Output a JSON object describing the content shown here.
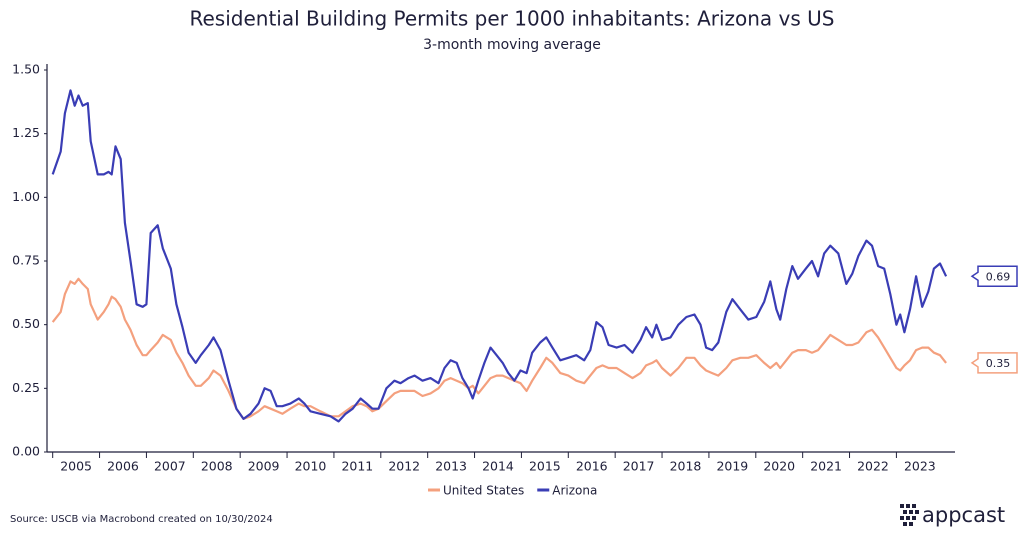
{
  "chart_data": {
    "type": "line",
    "title": "Residential Building Permits per 1000 inhabitants: Arizona vs US",
    "subtitle": "3-month moving average",
    "source": "Source: USCB via Macrobond created on 10/30/2024",
    "logo": "appcast",
    "x": [
      2005.0,
      2005.17,
      2005.26,
      2005.38,
      2005.47,
      2005.55,
      2005.64,
      2005.75,
      2005.81,
      2005.96,
      2006.09,
      2006.19,
      2006.26,
      2006.34,
      2006.45,
      2006.54,
      2006.66,
      2006.79,
      2006.92,
      2007.0,
      2007.09,
      2007.24,
      2007.35,
      2007.52,
      2007.64,
      2007.77,
      2007.9,
      2008.05,
      2008.16,
      2008.33,
      2008.43,
      2008.58,
      2008.75,
      2008.92,
      2009.07,
      2009.22,
      2009.39,
      2009.52,
      2009.65,
      2009.78,
      2009.9,
      2010.07,
      2010.25,
      2010.37,
      2010.5,
      2010.71,
      2010.93,
      2011.1,
      2011.25,
      2011.4,
      2011.57,
      2011.7,
      2011.82,
      2011.95,
      2012.12,
      2012.29,
      2012.42,
      2012.59,
      2012.72,
      2012.89,
      2013.06,
      2013.23,
      2013.36,
      2013.49,
      2013.62,
      2013.74,
      2013.87,
      2013.96,
      2014.08,
      2014.21,
      2014.34,
      2014.47,
      2014.6,
      2014.72,
      2014.85,
      2014.98,
      2015.11,
      2015.23,
      2015.4,
      2015.53,
      2015.66,
      2015.83,
      2016.0,
      2016.17,
      2016.34,
      2016.47,
      2016.6,
      2016.73,
      2016.86,
      2017.03,
      2017.2,
      2017.37,
      2017.54,
      2017.66,
      2017.79,
      2017.88,
      2018.0,
      2018.18,
      2018.35,
      2018.52,
      2018.69,
      2018.82,
      2018.94,
      2019.07,
      2019.2,
      2019.37,
      2019.5,
      2019.67,
      2019.84,
      2020.01,
      2020.18,
      2020.31,
      2020.44,
      2020.52,
      2020.65,
      2020.78,
      2020.9,
      2021.07,
      2021.2,
      2021.33,
      2021.46,
      2021.59,
      2021.76,
      2021.93,
      2022.06,
      2022.19,
      2022.36,
      2022.48,
      2022.61,
      2022.74,
      2022.87,
      2023.0,
      2023.08,
      2023.17,
      2023.29,
      2023.42,
      2023.55,
      2023.68,
      2023.8,
      2023.93,
      2024.06
    ],
    "series": [
      {
        "name": "United States",
        "color": "#f4a07e",
        "values": [
          0.51,
          0.55,
          0.62,
          0.67,
          0.66,
          0.68,
          0.66,
          0.64,
          0.58,
          0.52,
          0.55,
          0.58,
          0.61,
          0.6,
          0.57,
          0.52,
          0.48,
          0.42,
          0.38,
          0.38,
          0.4,
          0.43,
          0.46,
          0.44,
          0.39,
          0.35,
          0.3,
          0.26,
          0.26,
          0.29,
          0.32,
          0.3,
          0.24,
          0.17,
          0.13,
          0.14,
          0.16,
          0.18,
          0.17,
          0.16,
          0.15,
          0.17,
          0.19,
          0.18,
          0.18,
          0.16,
          0.14,
          0.14,
          0.16,
          0.18,
          0.19,
          0.18,
          0.16,
          0.17,
          0.2,
          0.23,
          0.24,
          0.24,
          0.24,
          0.22,
          0.23,
          0.25,
          0.28,
          0.29,
          0.28,
          0.27,
          0.25,
          0.26,
          0.23,
          0.26,
          0.29,
          0.3,
          0.3,
          0.29,
          0.28,
          0.27,
          0.24,
          0.28,
          0.33,
          0.37,
          0.35,
          0.31,
          0.3,
          0.28,
          0.27,
          0.3,
          0.33,
          0.34,
          0.33,
          0.33,
          0.31,
          0.29,
          0.31,
          0.34,
          0.35,
          0.36,
          0.33,
          0.3,
          0.33,
          0.37,
          0.37,
          0.34,
          0.32,
          0.31,
          0.3,
          0.33,
          0.36,
          0.37,
          0.37,
          0.38,
          0.35,
          0.33,
          0.35,
          0.33,
          0.36,
          0.39,
          0.4,
          0.4,
          0.39,
          0.4,
          0.43,
          0.46,
          0.44,
          0.42,
          0.42,
          0.43,
          0.47,
          0.48,
          0.45,
          0.41,
          0.37,
          0.33,
          0.32,
          0.34,
          0.36,
          0.4,
          0.41,
          0.41,
          0.39,
          0.38,
          0.35
        ]
      },
      {
        "name": "Arizona",
        "color": "#3a3db5",
        "values": [
          1.09,
          1.18,
          1.33,
          1.42,
          1.36,
          1.4,
          1.36,
          1.37,
          1.22,
          1.09,
          1.09,
          1.1,
          1.09,
          1.2,
          1.15,
          0.9,
          0.75,
          0.58,
          0.57,
          0.58,
          0.86,
          0.89,
          0.8,
          0.72,
          0.58,
          0.49,
          0.39,
          0.35,
          0.38,
          0.42,
          0.45,
          0.4,
          0.28,
          0.17,
          0.13,
          0.15,
          0.19,
          0.25,
          0.24,
          0.18,
          0.18,
          0.19,
          0.21,
          0.19,
          0.16,
          0.15,
          0.14,
          0.12,
          0.15,
          0.17,
          0.21,
          0.19,
          0.17,
          0.17,
          0.25,
          0.28,
          0.27,
          0.29,
          0.3,
          0.28,
          0.29,
          0.27,
          0.33,
          0.36,
          0.35,
          0.29,
          0.25,
          0.21,
          0.28,
          0.35,
          0.41,
          0.38,
          0.35,
          0.31,
          0.28,
          0.32,
          0.31,
          0.39,
          0.43,
          0.45,
          0.41,
          0.36,
          0.37,
          0.38,
          0.36,
          0.4,
          0.51,
          0.49,
          0.42,
          0.41,
          0.42,
          0.39,
          0.44,
          0.49,
          0.45,
          0.5,
          0.44,
          0.45,
          0.5,
          0.53,
          0.54,
          0.5,
          0.41,
          0.4,
          0.43,
          0.55,
          0.6,
          0.56,
          0.52,
          0.53,
          0.59,
          0.67,
          0.56,
          0.52,
          0.64,
          0.73,
          0.68,
          0.72,
          0.75,
          0.69,
          0.78,
          0.81,
          0.78,
          0.66,
          0.7,
          0.77,
          0.83,
          0.81,
          0.73,
          0.72,
          0.62,
          0.5,
          0.54,
          0.47,
          0.56,
          0.69,
          0.57,
          0.63,
          0.72,
          0.74,
          0.69
        ]
      }
    ],
    "xlim": [
      2004.9,
      2024.25
    ],
    "xticks": [
      2005,
      2006,
      2007,
      2008,
      2009,
      2010,
      2011,
      2012,
      2013,
      2014,
      2015,
      2016,
      2017,
      2018,
      2019,
      2020,
      2021,
      2022,
      2023
    ],
    "ylim": [
      0,
      1.5
    ],
    "yticks": [
      {
        "value": 0,
        "label": "0.00"
      },
      {
        "value": 0.25,
        "label": "0.25"
      },
      {
        "value": 0.5,
        "label": "0.50"
      },
      {
        "value": 0.75,
        "label": "0.75"
      },
      {
        "value": 1,
        "label": "1.00"
      },
      {
        "value": 1.25,
        "label": "1.25"
      },
      {
        "value": 1.5,
        "label": "1.50"
      }
    ],
    "legend": "bottom",
    "end_labels": true
  }
}
